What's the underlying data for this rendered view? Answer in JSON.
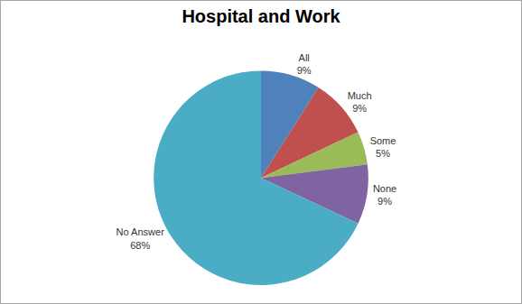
{
  "chart_data": {
    "type": "pie",
    "title": "Hospital and Work",
    "categories": [
      "All",
      "Much",
      "Some",
      "None",
      "No Answer"
    ],
    "values": [
      9,
      9,
      5,
      9,
      68
    ],
    "value_labels": [
      "9%",
      "9%",
      "5%",
      "9%",
      "68%"
    ],
    "colors": [
      "#4f81bd",
      "#c0504d",
      "#9bbb59",
      "#8064a2",
      "#4bacc6"
    ],
    "data_labels": true,
    "legend": "none"
  }
}
